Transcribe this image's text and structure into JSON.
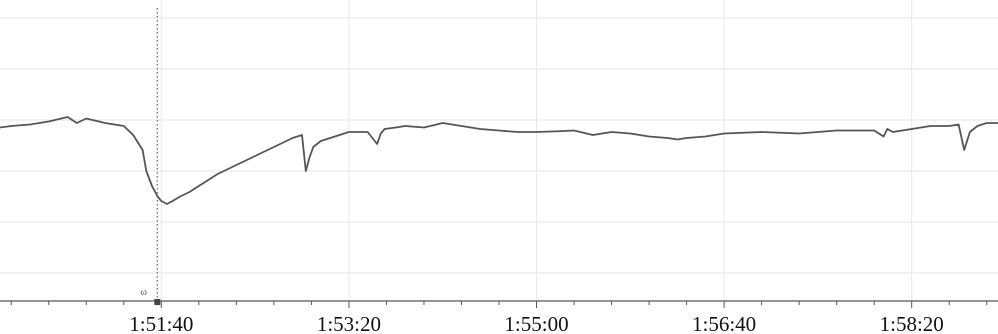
{
  "chart_data": {
    "type": "line",
    "title": "",
    "xlabel": "",
    "ylabel": "",
    "x_tick_labels": [
      "1:51:40",
      "1:53:20",
      "1:55:00",
      "1:56:40",
      "1:58:20"
    ],
    "x_tick_seconds": [
      6700,
      6800,
      6900,
      7000,
      7100
    ],
    "xlim_seconds": [
      6614,
      7146
    ],
    "ylim": [
      0,
      10
    ],
    "grid": true,
    "legend": "none",
    "marker": {
      "x_seconds": 6700,
      "label": "ω"
    },
    "series": [
      {
        "color": "#555555",
        "x": [
          6614,
          6620,
          6630,
          6640,
          6650,
          6655,
          6660,
          6670,
          6680,
          6685,
          6690,
          6692,
          6695,
          6698,
          6700,
          6703,
          6706,
          6710,
          6715,
          6720,
          6730,
          6740,
          6750,
          6760,
          6770,
          6775,
          6777,
          6779,
          6781,
          6785,
          6790,
          6800,
          6810,
          6815,
          6817,
          6819,
          6825,
          6830,
          6840,
          6850,
          6860,
          6870,
          6880,
          6890,
          6900,
          6910,
          6920,
          6930,
          6940,
          6950,
          6960,
          6970,
          6975,
          6980,
          6990,
          7000,
          7020,
          7040,
          7060,
          7080,
          7085,
          7087,
          7090,
          7100,
          7110,
          7120,
          7125,
          7128,
          7131,
          7135,
          7140,
          7146
        ],
        "y": [
          5.75,
          5.8,
          5.85,
          5.95,
          6.1,
          5.9,
          6.05,
          5.9,
          5.8,
          5.5,
          5.0,
          4.3,
          3.8,
          3.45,
          3.3,
          3.2,
          3.3,
          3.45,
          3.6,
          3.8,
          4.2,
          4.5,
          4.8,
          5.1,
          5.4,
          5.5,
          4.3,
          4.75,
          5.1,
          5.3,
          5.4,
          5.6,
          5.6,
          5.2,
          5.55,
          5.7,
          5.75,
          5.8,
          5.75,
          5.9,
          5.8,
          5.7,
          5.65,
          5.6,
          5.6,
          5.62,
          5.65,
          5.5,
          5.6,
          5.55,
          5.45,
          5.4,
          5.35,
          5.4,
          5.45,
          5.55,
          5.6,
          5.55,
          5.65,
          5.65,
          5.45,
          5.7,
          5.6,
          5.7,
          5.8,
          5.8,
          5.85,
          5.0,
          5.6,
          5.8,
          5.9,
          5.9
        ]
      }
    ]
  }
}
